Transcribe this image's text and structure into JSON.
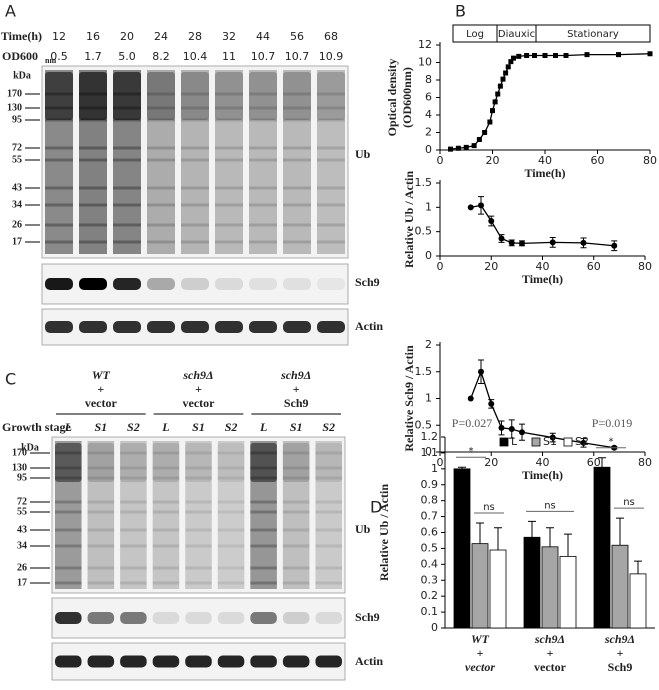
{
  "panels": {
    "A": {
      "label": "A",
      "time_label": "Time(h)",
      "times": [
        "12",
        "16",
        "20",
        "24",
        "28",
        "32",
        "44",
        "56",
        "68"
      ],
      "od_label": "OD600",
      "od_sub": "nm",
      "od": [
        "0.5",
        "1.7",
        "5.0",
        "8.2",
        "10.4",
        "11",
        "10.7",
        "10.7",
        "10.9"
      ],
      "kda": "kDa",
      "markers": [
        "170",
        "130",
        "95",
        "72",
        "55",
        "43",
        "34",
        "26",
        "17"
      ],
      "blots": [
        "Ub",
        "Sch9",
        "Actin"
      ]
    },
    "B": {
      "label": "B"
    },
    "C": {
      "label": "C",
      "genotypes": [
        [
          "WT",
          "+",
          "vector"
        ],
        [
          "sch9Δ",
          "+",
          "vector"
        ],
        [
          "sch9Δ",
          "+",
          "Sch9"
        ]
      ],
      "stage_label": "Growth stage",
      "stages": [
        "L",
        "S1",
        "S2",
        "L",
        "S1",
        "S2",
        "L",
        "S1",
        "S2"
      ],
      "kda": "kDa",
      "markers": [
        "170",
        "130",
        "95",
        "72",
        "55",
        "43",
        "34",
        "26",
        "17"
      ],
      "blots": [
        "Ub",
        "Sch9",
        "Actin"
      ]
    },
    "D": {
      "label": "D"
    }
  },
  "chart_data": [
    {
      "type": "line",
      "xlabel": "Time(h)",
      "ylabel": [
        "Optical density",
        "(OD600nm)"
      ],
      "phases": [
        "Log",
        "Diauxic",
        "Stationary"
      ],
      "x": [
        4,
        7,
        10,
        13,
        15,
        17,
        19,
        20,
        21,
        22,
        23,
        24,
        25,
        26,
        27,
        28,
        30,
        33,
        36,
        40,
        44,
        48,
        56,
        68,
        80
      ],
      "series": [
        {
          "color": "#000000",
          "marker": "square",
          "values": [
            0.1,
            0.2,
            0.3,
            0.5,
            1.2,
            2.0,
            3.2,
            4.5,
            5.5,
            6.4,
            7.3,
            8.1,
            8.8,
            9.5,
            10.1,
            10.5,
            10.7,
            10.8,
            10.8,
            10.8,
            10.8,
            10.8,
            10.9,
            10.9,
            11
          ]
        }
      ],
      "xlim": [
        0,
        80
      ],
      "xticks": [
        0,
        20,
        40,
        60,
        80
      ],
      "ylim": [
        0,
        12
      ],
      "yticks": [
        0,
        2,
        4,
        6,
        8,
        10,
        12
      ]
    },
    {
      "type": "line",
      "xlabel": "Time(h)",
      "ylabel": "Relative Ub / Actin",
      "x": [
        12,
        16,
        20,
        24,
        28,
        32,
        44,
        56,
        68
      ],
      "series": [
        {
          "color": "#000000",
          "marker": "circle",
          "values": [
            1,
            1.04,
            0.72,
            0.36,
            0.27,
            0.26,
            0.28,
            0.27,
            0.21
          ],
          "errors": [
            null,
            0.18,
            0.1,
            0.08,
            0.06,
            0.05,
            0.1,
            0.1,
            0.1
          ]
        }
      ],
      "xlim": [
        0,
        80
      ],
      "xticks": [
        0,
        20,
        40,
        60,
        80
      ],
      "ylim": [
        0,
        1.5
      ],
      "yticks": [
        0,
        0.5,
        1,
        1.5
      ]
    },
    {
      "type": "line",
      "xlabel": "Time(h)",
      "ylabel": "Relative Sch9 / Actin",
      "x": [
        12,
        16,
        20,
        24,
        28,
        32,
        44,
        56,
        68
      ],
      "series": [
        {
          "color": "#000000",
          "marker": "circle",
          "values": [
            1,
            1.5,
            0.9,
            0.45,
            0.43,
            0.37,
            0.27,
            0.17,
            0.08
          ],
          "errors": [
            null,
            0.22,
            0.08,
            0.13,
            0.17,
            0.15,
            0.08,
            0.08,
            0.02
          ]
        }
      ],
      "xlim": [
        0,
        80
      ],
      "xticks": [
        0,
        20,
        40,
        60,
        80
      ],
      "ylim": [
        0,
        2
      ],
      "yticks": [
        0,
        0.5,
        1,
        1.5,
        2
      ]
    },
    {
      "type": "bar",
      "ylabel": "Relative Ub / Actin",
      "categories": [
        [
          "WT",
          "+",
          "vector"
        ],
        [
          "sch9Δ",
          "+",
          "vector"
        ],
        [
          "sch9Δ",
          "+",
          "Sch9"
        ]
      ],
      "series": [
        {
          "name": "L",
          "color": "#000000",
          "values": [
            1,
            0.57,
            1.01
          ],
          "errors": [
            0.01,
            0.1,
            0.06
          ]
        },
        {
          "name": "S1",
          "color": "#a6a6a6",
          "values": [
            0.53,
            0.51,
            0.52
          ],
          "errors": [
            0.13,
            0.12,
            0.17
          ]
        },
        {
          "name": "S2",
          "color": "#ffffff",
          "values": [
            0.49,
            0.45,
            0.34
          ],
          "errors": [
            0.14,
            0.14,
            0.08
          ]
        }
      ],
      "pvalues": [
        "P=0.027",
        null,
        "P=0.019"
      ],
      "brackets": [
        [
          "*",
          "ns"
        ],
        [
          "ns"
        ],
        [
          "*",
          "ns"
        ]
      ],
      "ylim": [
        0,
        1.2
      ],
      "yticks": [
        0,
        0.1,
        0.2,
        0.3,
        0.4,
        0.5,
        0.6,
        0.7,
        0.8,
        0.9,
        1,
        1.1,
        1.2
      ]
    }
  ]
}
